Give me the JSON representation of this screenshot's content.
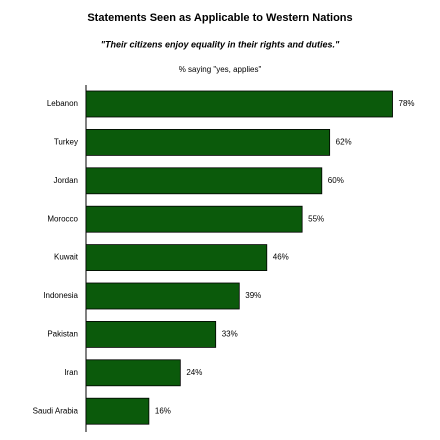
{
  "chart_data": {
    "type": "bar",
    "orientation": "horizontal",
    "title": "Statements Seen as Applicable to Western Nations",
    "subtitle": "\"Their citizens enjoy equality in their rights and duties.\"",
    "note": "% saying \"yes, applies\"",
    "categories": [
      "Lebanon",
      "Turkey",
      "Jordan",
      "Morocco",
      "Kuwait",
      "Indonesia",
      "Pakistan",
      "Iran",
      "Saudi Arabia"
    ],
    "values": [
      78,
      62,
      60,
      55,
      46,
      39,
      33,
      24,
      16
    ],
    "value_labels": [
      "78%",
      "62%",
      "60%",
      "55%",
      "46%",
      "39%",
      "33%",
      "24%",
      "16%"
    ],
    "color": "#0b5a0b"
  }
}
